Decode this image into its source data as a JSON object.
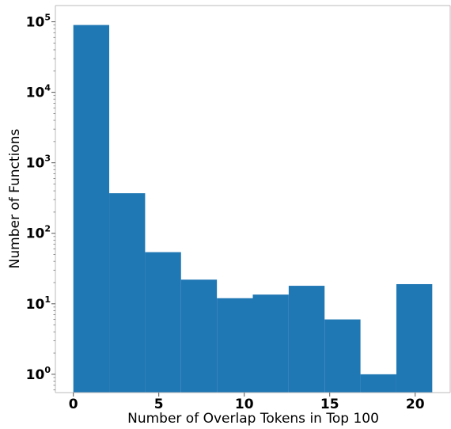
{
  "chart_data": {
    "type": "bar",
    "subtype": "histogram",
    "xlabel": "Number of Overlap Tokens in Top 100",
    "ylabel": "Number of Functions",
    "yscale": "log",
    "ylim": [
      0.55,
      170000
    ],
    "xlim": [
      -1.05,
      22.05
    ],
    "grid": false,
    "x_ticks": [
      0,
      5,
      10,
      15,
      20
    ],
    "y_ticks": [
      {
        "base": "10",
        "exp": "0"
      },
      {
        "base": "10",
        "exp": "1"
      },
      {
        "base": "10",
        "exp": "2"
      },
      {
        "base": "10",
        "exp": "3"
      },
      {
        "base": "10",
        "exp": "4"
      },
      {
        "base": "10",
        "exp": "5"
      }
    ],
    "bin_edges": [
      0,
      2.1,
      4.2,
      6.3,
      8.4,
      10.5,
      12.6,
      14.7,
      16.8,
      18.9,
      21
    ],
    "counts": [
      90000,
      370,
      54,
      22,
      12,
      13.5,
      18,
      6,
      1,
      19
    ],
    "bar_color": "#1f77b4"
  }
}
